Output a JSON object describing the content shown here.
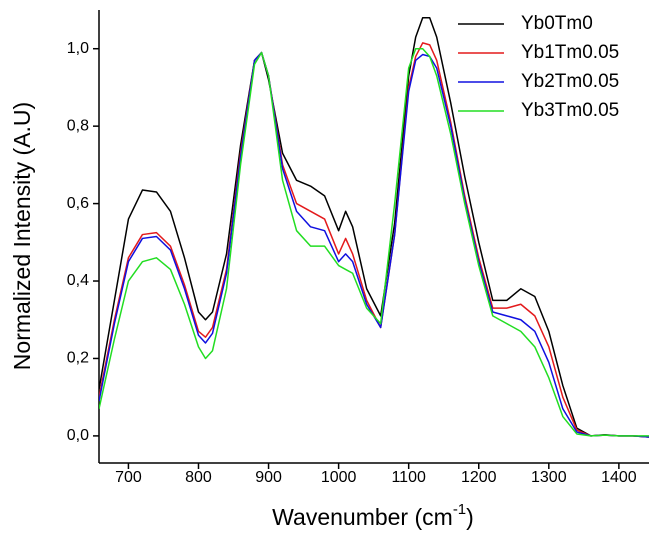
{
  "chart_data": {
    "type": "line",
    "xlabel": [
      "Wavenumber (cm",
      "-1",
      ")"
    ],
    "ylabel": "Normalized Intensity (A.U)",
    "xlim": [
      658,
      1443
    ],
    "ylim": [
      -0.07,
      1.1
    ],
    "xticks": [
      700,
      800,
      900,
      1000,
      1100,
      1200,
      1300,
      1400
    ],
    "yticks": [
      {
        "value": 0,
        "label": "0,0"
      },
      {
        "value": 0.2,
        "label": "0,2"
      },
      {
        "value": 0.4,
        "label": "0,4"
      },
      {
        "value": 0.6,
        "label": "0,6"
      },
      {
        "value": 0.8,
        "label": "0,8"
      },
      {
        "value": 1.0,
        "label": "1,0"
      }
    ],
    "legend": "upper right",
    "x": [
      658,
      680,
      700,
      720,
      740,
      760,
      780,
      800,
      810,
      820,
      840,
      860,
      880,
      890,
      900,
      920,
      940,
      960,
      980,
      1000,
      1010,
      1020,
      1040,
      1060,
      1080,
      1100,
      1110,
      1120,
      1130,
      1140,
      1160,
      1180,
      1200,
      1220,
      1240,
      1260,
      1280,
      1300,
      1320,
      1340,
      1360,
      1380,
      1400,
      1420,
      1443
    ],
    "series": [
      {
        "name": "Yb0Tm0",
        "color": "#000000",
        "values": [
          0.12,
          0.35,
          0.56,
          0.635,
          0.63,
          0.58,
          0.46,
          0.32,
          0.3,
          0.32,
          0.47,
          0.75,
          0.97,
          0.99,
          0.92,
          0.73,
          0.66,
          0.645,
          0.62,
          0.53,
          0.58,
          0.54,
          0.38,
          0.31,
          0.55,
          0.93,
          1.03,
          1.08,
          1.08,
          1.03,
          0.86,
          0.67,
          0.5,
          0.35,
          0.35,
          0.38,
          0.36,
          0.27,
          0.13,
          0.02,
          0.0,
          0.003,
          0.0,
          0.0,
          -0.003
        ]
      },
      {
        "name": "Yb1Tm0.05",
        "color": "#e31a1c",
        "values": [
          0.1,
          0.3,
          0.46,
          0.52,
          0.525,
          0.49,
          0.39,
          0.27,
          0.255,
          0.28,
          0.43,
          0.73,
          0.97,
          0.99,
          0.93,
          0.7,
          0.6,
          0.58,
          0.56,
          0.47,
          0.51,
          0.47,
          0.35,
          0.28,
          0.52,
          0.9,
          0.98,
          1.015,
          1.01,
          0.97,
          0.81,
          0.62,
          0.46,
          0.33,
          0.33,
          0.34,
          0.31,
          0.23,
          0.1,
          0.015,
          0.0,
          0.002,
          0.0,
          0.0,
          -0.003
        ]
      },
      {
        "name": "Yb2Tm0.05",
        "color": "#1010e0",
        "values": [
          0.09,
          0.29,
          0.45,
          0.51,
          0.515,
          0.48,
          0.38,
          0.26,
          0.24,
          0.265,
          0.42,
          0.72,
          0.97,
          0.99,
          0.93,
          0.69,
          0.58,
          0.54,
          0.53,
          0.45,
          0.47,
          0.45,
          0.34,
          0.28,
          0.52,
          0.89,
          0.97,
          0.985,
          0.98,
          0.95,
          0.8,
          0.61,
          0.45,
          0.32,
          0.31,
          0.3,
          0.27,
          0.19,
          0.07,
          0.01,
          0.0,
          0.002,
          0.0,
          0.0,
          -0.003
        ]
      },
      {
        "name": "Yb3Tm0.05",
        "color": "#22dd22",
        "values": [
          0.07,
          0.25,
          0.4,
          0.45,
          0.46,
          0.43,
          0.34,
          0.23,
          0.2,
          0.22,
          0.38,
          0.7,
          0.96,
          0.99,
          0.93,
          0.66,
          0.53,
          0.49,
          0.49,
          0.44,
          0.43,
          0.42,
          0.33,
          0.29,
          0.6,
          0.95,
          1.0,
          1.0,
          0.98,
          0.93,
          0.78,
          0.6,
          0.44,
          0.31,
          0.29,
          0.27,
          0.23,
          0.15,
          0.05,
          0.005,
          0.0,
          0.002,
          0.0,
          0.0,
          0.0
        ]
      }
    ]
  }
}
